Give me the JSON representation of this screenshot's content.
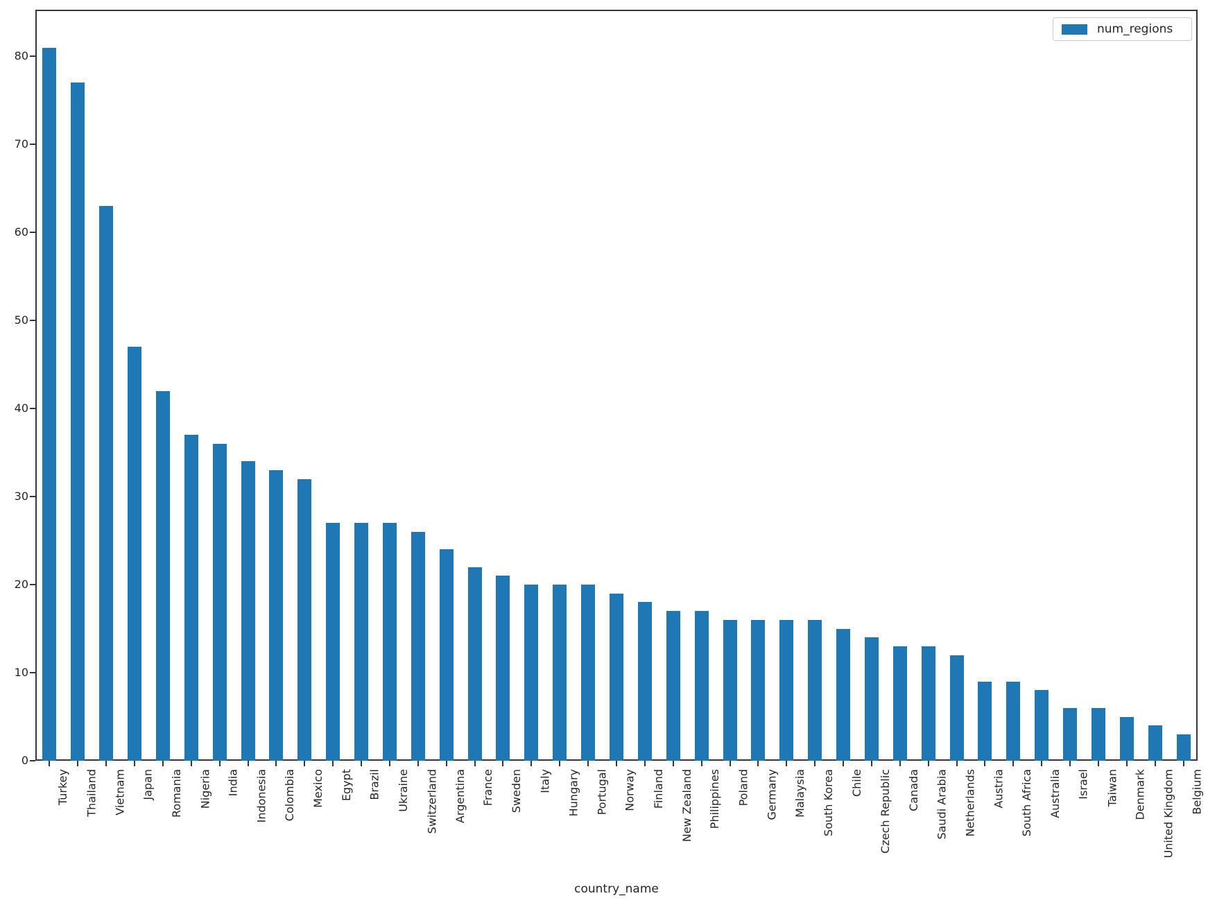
{
  "chart_data": {
    "type": "bar",
    "title": "",
    "xlabel": "country_name",
    "ylabel": "",
    "grid": false,
    "legend_position": "upper right",
    "bar_color": "#1f77b4",
    "axis_color": "#363636",
    "text_color": "#262626",
    "ylim": [
      0,
      85.3
    ],
    "yticks": [
      0,
      10,
      20,
      30,
      40,
      50,
      60,
      70,
      80
    ],
    "categories": [
      "Turkey",
      "Thailand",
      "Vietnam",
      "Japan",
      "Romania",
      "Nigeria",
      "India",
      "Indonesia",
      "Colombia",
      "Mexico",
      "Egypt",
      "Brazil",
      "Ukraine",
      "Switzerland",
      "Argentina",
      "France",
      "Sweden",
      "Italy",
      "Hungary",
      "Portugal",
      "Norway",
      "Finland",
      "New Zealand",
      "Philippines",
      "Poland",
      "Germany",
      "Malaysia",
      "South Korea",
      "Chile",
      "Czech Republic",
      "Canada",
      "Saudi Arabia",
      "Netherlands",
      "Austria",
      "South Africa",
      "Australia",
      "Israel",
      "Taiwan",
      "Denmark",
      "United Kingdom",
      "Belgium"
    ],
    "series": [
      {
        "name": "num_regions",
        "values": [
          81,
          77,
          63,
          47,
          42,
          37,
          36,
          34,
          33,
          32,
          27,
          27,
          27,
          26,
          24,
          22,
          21,
          20,
          20,
          20,
          19,
          18,
          17,
          17,
          16,
          16,
          16,
          16,
          15,
          14,
          13,
          13,
          12,
          9,
          9,
          8,
          6,
          6,
          5,
          4,
          3
        ]
      }
    ]
  }
}
